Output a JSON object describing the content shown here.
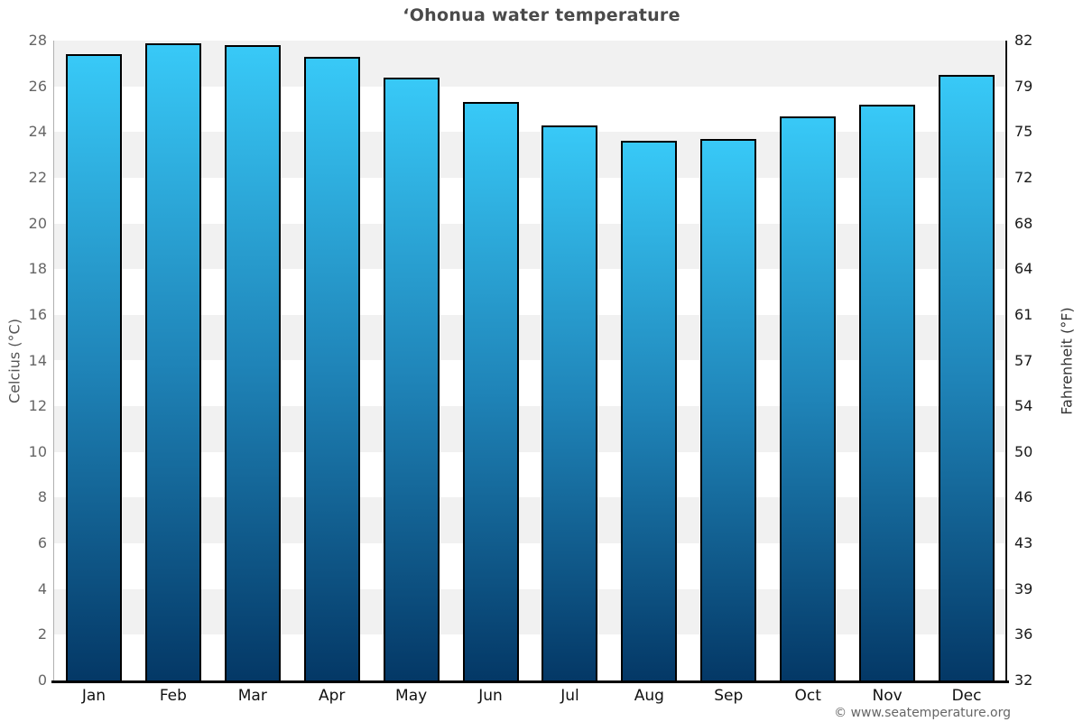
{
  "title": "‘Ohonua water temperature",
  "footer": "© www.seatemperature.org",
  "chart_data": {
    "type": "bar",
    "title": "‘Ohonua water temperature",
    "categories": [
      "Jan",
      "Feb",
      "Mar",
      "Apr",
      "May",
      "Jun",
      "Jul",
      "Aug",
      "Sep",
      "Oct",
      "Nov",
      "Dec"
    ],
    "values": [
      27.4,
      27.9,
      27.8,
      27.3,
      26.4,
      25.3,
      24.3,
      23.6,
      23.7,
      24.7,
      25.2,
      26.5
    ],
    "value_unit": "°C",
    "ylabel_left": "Celcius (°C)",
    "ylabel_right": "Fahrenheit (°F)",
    "ylim": [
      0,
      28
    ],
    "yticks_celsius": [
      0,
      2,
      4,
      6,
      8,
      10,
      12,
      14,
      16,
      18,
      20,
      22,
      24,
      26,
      28
    ],
    "yticks_fahrenheit": [
      32,
      36,
      39,
      43,
      46,
      50,
      54,
      57,
      61,
      64,
      68,
      72,
      75,
      79,
      82
    ],
    "grid": "alternating 2°C horizontal bands, no gridlines",
    "legend_position": "none",
    "band_color_gray": "#f1f1f1",
    "band_color_white": "#ffffff",
    "bar_gradient_top": "#38c9f7",
    "bar_gradient_mid": "#1f84b8",
    "bar_gradient_bottom": "#043866",
    "bar_border_color": "#000000"
  }
}
